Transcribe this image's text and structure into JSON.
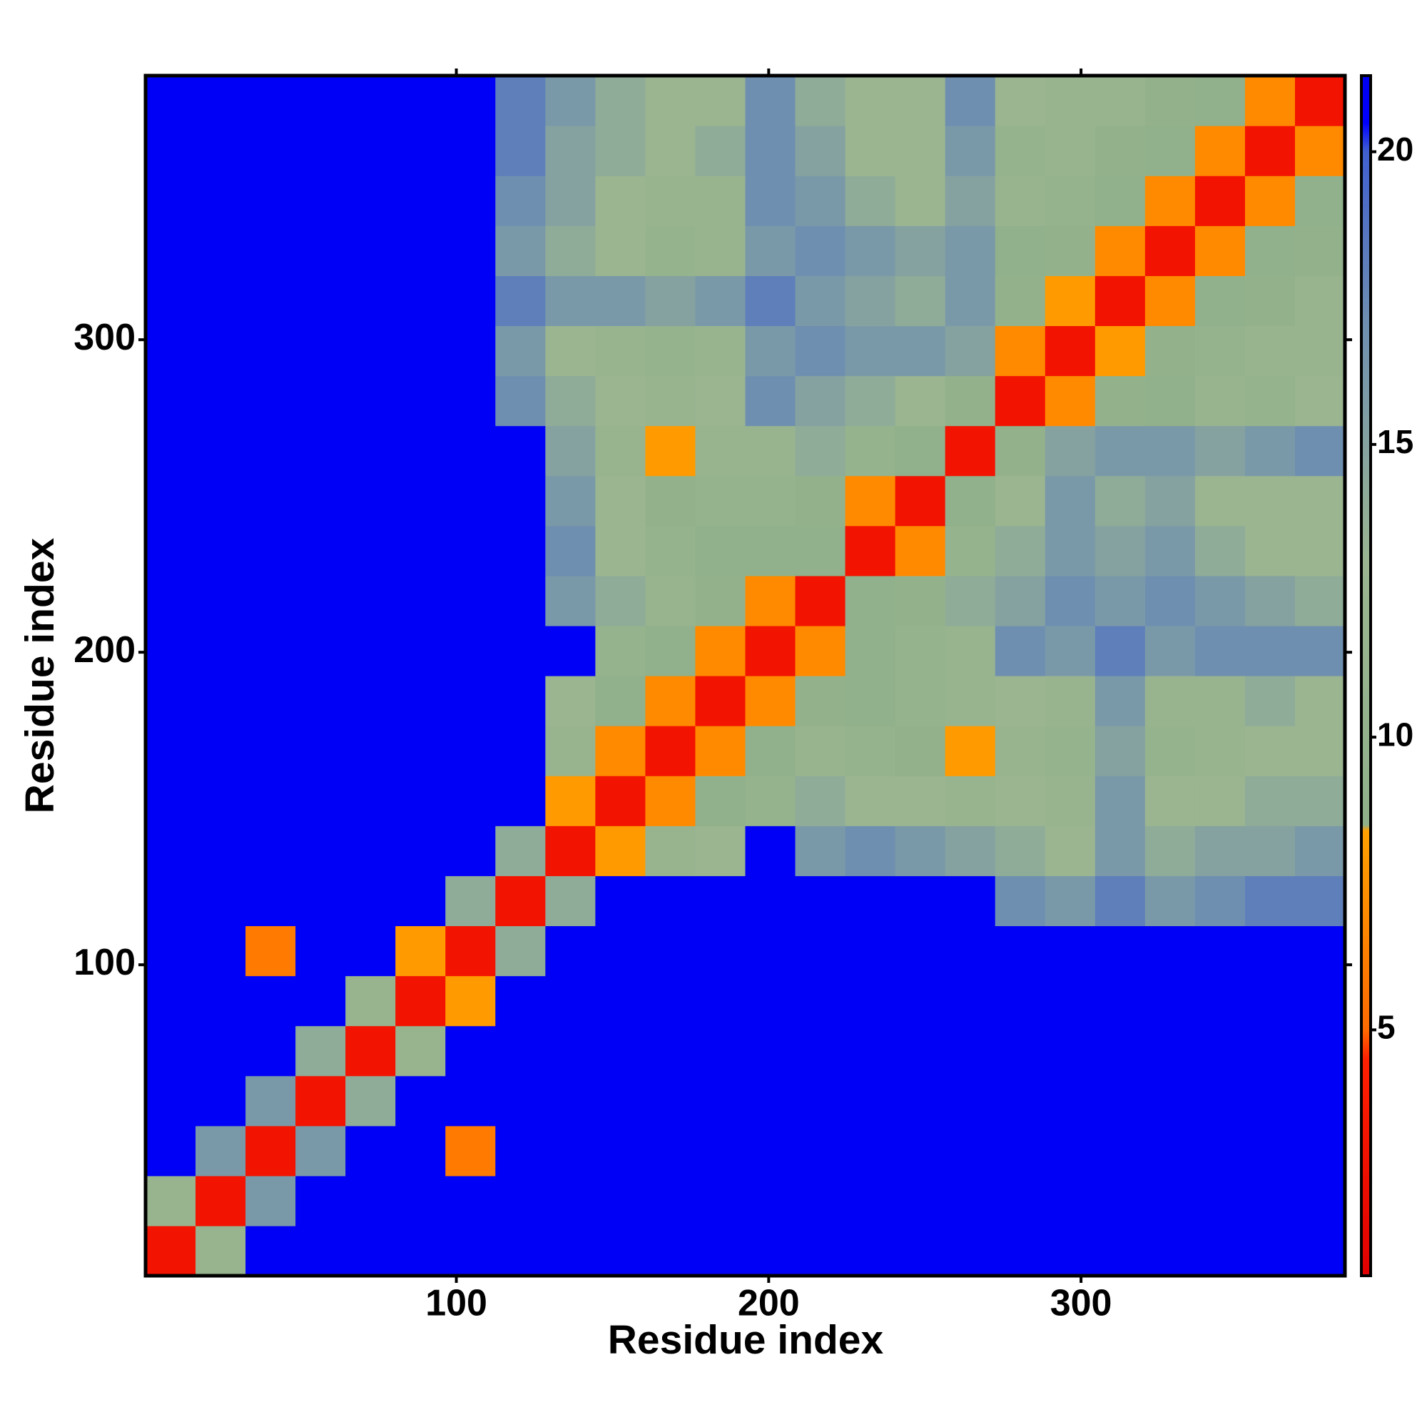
{
  "chart_data": {
    "type": "heatmap",
    "x_label": "Residue index",
    "y_label": "Residue index",
    "bins": [
      0.5,
      16.5,
      32.5,
      48.5,
      64.5,
      80.5,
      96.5,
      112.5,
      128.5,
      144.5,
      160.5,
      176.5,
      192.5,
      208.5,
      224.5,
      240.5,
      256.5,
      272.5,
      288.5,
      304.5,
      320.5,
      336.5,
      352.5,
      368.5,
      384.5
    ],
    "xlim": [
      0.5,
      384.5
    ],
    "ylim": [
      0.5,
      384.5
    ],
    "xticks": [
      100,
      200,
      300
    ],
    "yticks": [
      100,
      200,
      300
    ],
    "zlim": [
      0.8,
      21.3
    ],
    "zticks": [
      5,
      10,
      15,
      20
    ],
    "colorscale": [
      [
        0.8,
        "#e00000"
      ],
      [
        4.5,
        "#ff2000"
      ],
      [
        5,
        "#ff6a00"
      ],
      [
        8.4,
        "#ffa000"
      ],
      [
        8.5,
        "#8fb08a"
      ],
      [
        13,
        "#9ab590"
      ],
      [
        17,
        "#6f8fb0"
      ],
      [
        20,
        "#4060d0"
      ],
      [
        20.5,
        "#0000ff"
      ],
      [
        21.3,
        "#0000f0"
      ]
    ],
    "z": [
      [
        3,
        12,
        21,
        21,
        21,
        21,
        21,
        21,
        21,
        21,
        21,
        21,
        21,
        21,
        21,
        21,
        21,
        21,
        21,
        21,
        21,
        21,
        21,
        21
      ],
      [
        12,
        3,
        16,
        21,
        21,
        21,
        21,
        21,
        21,
        21,
        21,
        21,
        21,
        21,
        21,
        21,
        21,
        21,
        21,
        21,
        21,
        21,
        21,
        21
      ],
      [
        21,
        16,
        3,
        16,
        21,
        21,
        6,
        21,
        21,
        21,
        21,
        21,
        21,
        21,
        21,
        21,
        21,
        21,
        21,
        21,
        21,
        21,
        21,
        21
      ],
      [
        21,
        21,
        16,
        3,
        14,
        21,
        21,
        21,
        21,
        21,
        21,
        21,
        21,
        21,
        21,
        21,
        21,
        21,
        21,
        21,
        21,
        21,
        21,
        21
      ],
      [
        21,
        21,
        21,
        14,
        3,
        12,
        21,
        21,
        21,
        21,
        21,
        21,
        21,
        21,
        21,
        21,
        21,
        21,
        21,
        21,
        21,
        21,
        21,
        21
      ],
      [
        21,
        21,
        21,
        21,
        12,
        3,
        8,
        21,
        21,
        21,
        21,
        21,
        21,
        21,
        21,
        21,
        21,
        21,
        21,
        21,
        21,
        21,
        21,
        21
      ],
      [
        21,
        21,
        6,
        21,
        21,
        8,
        3,
        14,
        21,
        21,
        21,
        21,
        21,
        21,
        21,
        21,
        21,
        21,
        21,
        21,
        21,
        21,
        21,
        21
      ],
      [
        21,
        21,
        21,
        21,
        21,
        21,
        14,
        3,
        14,
        21,
        21,
        21,
        21,
        21,
        21,
        21,
        21,
        17,
        16,
        18,
        16,
        17,
        18,
        18
      ],
      [
        21,
        21,
        21,
        21,
        21,
        21,
        21,
        14,
        3,
        8,
        12,
        13,
        21,
        16,
        17,
        16,
        15,
        14,
        13,
        16,
        14,
        15,
        15,
        16
      ],
      [
        21,
        21,
        21,
        21,
        21,
        21,
        21,
        21,
        8,
        3,
        7,
        9,
        11,
        14,
        13,
        13,
        12,
        13,
        12,
        16,
        13,
        13,
        14,
        14
      ],
      [
        21,
        21,
        21,
        21,
        21,
        21,
        21,
        21,
        12,
        7,
        3,
        7,
        9,
        12,
        11,
        10,
        8,
        12,
        11,
        15,
        11,
        12,
        13,
        13
      ],
      [
        21,
        21,
        21,
        21,
        21,
        21,
        21,
        21,
        13,
        9,
        7,
        3,
        7,
        10,
        9,
        11,
        12,
        13,
        12,
        16,
        12,
        12,
        14,
        13
      ],
      [
        21,
        21,
        21,
        21,
        21,
        21,
        21,
        21,
        21,
        11,
        9,
        7,
        3,
        7,
        9,
        11,
        12,
        17,
        16,
        18,
        16,
        17,
        17,
        17
      ],
      [
        21,
        21,
        21,
        21,
        21,
        21,
        21,
        21,
        16,
        14,
        12,
        10,
        7,
        3,
        9,
        10,
        14,
        15,
        17,
        16,
        17,
        16,
        15,
        14
      ],
      [
        21,
        21,
        21,
        21,
        21,
        21,
        21,
        21,
        17,
        13,
        11,
        9,
        9,
        9,
        3,
        7,
        11,
        14,
        16,
        15,
        16,
        14,
        13,
        13
      ],
      [
        21,
        21,
        21,
        21,
        21,
        21,
        21,
        21,
        16,
        13,
        10,
        11,
        11,
        10,
        7,
        3,
        9,
        13,
        16,
        14,
        15,
        13,
        13,
        13
      ],
      [
        21,
        21,
        21,
        21,
        21,
        21,
        21,
        21,
        15,
        12,
        8,
        12,
        12,
        14,
        11,
        9,
        3,
        10,
        15,
        16,
        16,
        15,
        16,
        17
      ],
      [
        21,
        21,
        21,
        21,
        21,
        21,
        21,
        17,
        14,
        13,
        12,
        13,
        17,
        15,
        14,
        13,
        10,
        3,
        7,
        10,
        9,
        12,
        11,
        13
      ],
      [
        21,
        21,
        21,
        21,
        21,
        21,
        21,
        16,
        13,
        12,
        11,
        12,
        16,
        17,
        16,
        16,
        15,
        7,
        3,
        8,
        10,
        11,
        12,
        12
      ],
      [
        21,
        21,
        21,
        21,
        21,
        21,
        21,
        18,
        16,
        16,
        15,
        16,
        18,
        16,
        15,
        14,
        16,
        10,
        8,
        3,
        7,
        9,
        10,
        12
      ],
      [
        21,
        21,
        21,
        21,
        21,
        21,
        21,
        16,
        14,
        13,
        11,
        12,
        16,
        17,
        16,
        15,
        16,
        9,
        10,
        7,
        3,
        7,
        9,
        10
      ],
      [
        21,
        21,
        21,
        21,
        21,
        21,
        21,
        17,
        15,
        13,
        12,
        12,
        17,
        16,
        14,
        13,
        15,
        12,
        11,
        9,
        7,
        3,
        7,
        9
      ],
      [
        21,
        21,
        21,
        21,
        21,
        21,
        21,
        18,
        15,
        14,
        13,
        14,
        17,
        15,
        13,
        13,
        16,
        11,
        12,
        10,
        9,
        7,
        3,
        7
      ],
      [
        21,
        21,
        21,
        21,
        21,
        21,
        21,
        18,
        16,
        14,
        13,
        13,
        17,
        14,
        13,
        13,
        17,
        13,
        12,
        12,
        10,
        9,
        7,
        3
      ]
    ]
  }
}
